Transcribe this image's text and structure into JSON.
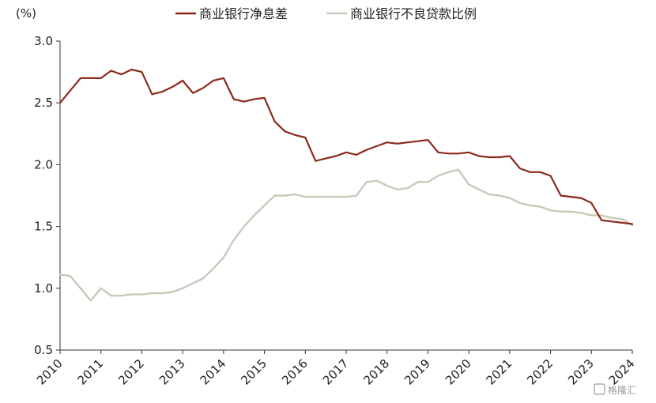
{
  "chart_data": {
    "type": "line",
    "unit_label": "(%)",
    "ylim": [
      0.5,
      3.0
    ],
    "y_ticks": [
      "0.5",
      "1.0",
      "1.5",
      "2.0",
      "2.5",
      "3.0"
    ],
    "xlim": [
      2010,
      2024
    ],
    "x_ticks": [
      "2010",
      "2011",
      "2012",
      "2013",
      "2014",
      "2015",
      "2016",
      "2017",
      "2018",
      "2019",
      "2020",
      "2021",
      "2022",
      "2023",
      "2024"
    ],
    "grid": false,
    "legend_position": "top",
    "series": [
      {
        "name": "商业银行净息差",
        "color": "#8b2a1a",
        "x": [
          2010.0,
          2010.25,
          2010.5,
          2010.75,
          2011.0,
          2011.25,
          2011.5,
          2011.75,
          2012.0,
          2012.25,
          2012.5,
          2012.75,
          2013.0,
          2013.25,
          2013.5,
          2013.75,
          2014.0,
          2014.25,
          2014.5,
          2014.75,
          2015.0,
          2015.25,
          2015.5,
          2015.75,
          2016.0,
          2016.25,
          2016.5,
          2016.75,
          2017.0,
          2017.25,
          2017.5,
          2017.75,
          2018.0,
          2018.25,
          2018.5,
          2018.75,
          2019.0,
          2019.25,
          2019.5,
          2019.75,
          2020.0,
          2020.25,
          2020.5,
          2020.75,
          2021.0,
          2021.25,
          2021.5,
          2021.75,
          2022.0,
          2022.25,
          2022.5,
          2022.75,
          2023.0,
          2023.25,
          2023.5,
          2023.75,
          2024.0
        ],
        "y": [
          2.5,
          2.6,
          2.7,
          2.7,
          2.7,
          2.76,
          2.73,
          2.77,
          2.75,
          2.57,
          2.59,
          2.63,
          2.68,
          2.58,
          2.62,
          2.68,
          2.7,
          2.53,
          2.51,
          2.53,
          2.54,
          2.35,
          2.27,
          2.24,
          2.22,
          2.03,
          2.05,
          2.07,
          2.1,
          2.08,
          2.12,
          2.15,
          2.18,
          2.17,
          2.18,
          2.19,
          2.2,
          2.1,
          2.09,
          2.09,
          2.1,
          2.07,
          2.06,
          2.06,
          2.07,
          1.97,
          1.94,
          1.94,
          1.91,
          1.75,
          1.74,
          1.73,
          1.69,
          1.55,
          1.54,
          1.53,
          1.52
        ]
      },
      {
        "name": "商业银行不良贷款比例",
        "color": "#c8c9b9",
        "x": [
          2010.0,
          2010.25,
          2010.5,
          2010.75,
          2011.0,
          2011.25,
          2011.5,
          2011.75,
          2012.0,
          2012.25,
          2012.5,
          2012.75,
          2013.0,
          2013.25,
          2013.5,
          2013.75,
          2014.0,
          2014.25,
          2014.5,
          2014.75,
          2015.0,
          2015.25,
          2015.5,
          2015.75,
          2016.0,
          2016.25,
          2016.5,
          2016.75,
          2017.0,
          2017.25,
          2017.5,
          2017.75,
          2018.0,
          2018.25,
          2018.5,
          2018.75,
          2019.0,
          2019.25,
          2019.5,
          2019.75,
          2020.0,
          2020.25,
          2020.5,
          2020.75,
          2021.0,
          2021.25,
          2021.5,
          2021.75,
          2022.0,
          2022.25,
          2022.5,
          2022.75,
          2023.0,
          2023.25,
          2023.5,
          2023.75,
          2024.0
        ],
        "y": [
          1.11,
          1.1,
          1.0,
          0.9,
          1.0,
          0.94,
          0.94,
          0.95,
          0.95,
          0.96,
          0.96,
          0.97,
          1.0,
          1.04,
          1.08,
          1.16,
          1.25,
          1.39,
          1.5,
          1.59,
          1.67,
          1.75,
          1.75,
          1.76,
          1.74,
          1.74,
          1.74,
          1.74,
          1.74,
          1.75,
          1.86,
          1.87,
          1.83,
          1.8,
          1.81,
          1.86,
          1.86,
          1.91,
          1.94,
          1.96,
          1.84,
          1.8,
          1.76,
          1.75,
          1.73,
          1.69,
          1.67,
          1.66,
          1.63,
          1.62,
          1.62,
          1.61,
          1.59,
          1.59,
          1.57,
          1.56,
          1.51
        ]
      }
    ]
  },
  "watermark": {
    "text": "格隆汇"
  }
}
